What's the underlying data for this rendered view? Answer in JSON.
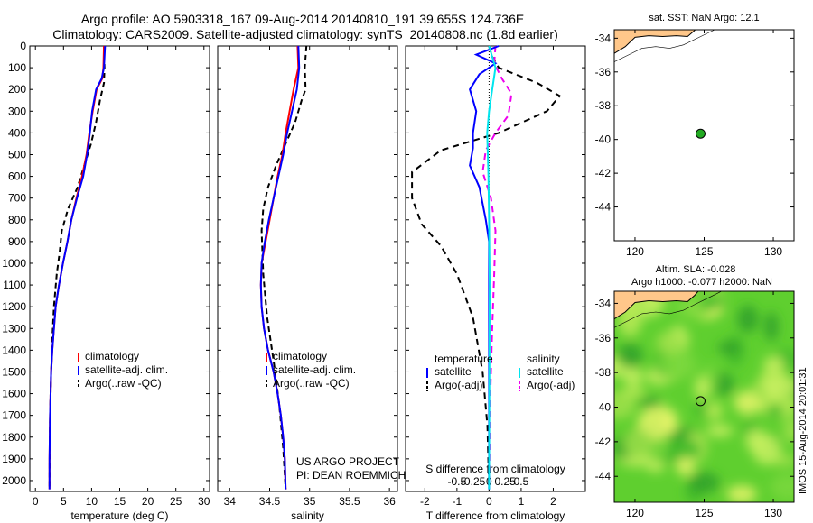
{
  "header": {
    "title_line1": "Argo profile: AO 5903318_167 09-Aug-2014 20140810_191 39.655S 124.736E",
    "title_line2": "Climatology: CARS2009. Satellite-adjusted climatology: synTS_20140808.nc (1.8d earlier)"
  },
  "footer": {
    "project": "US ARGO PROJECT",
    "pi": "PI: DEAN ROEMMICH",
    "vertical_stamp": "IMOS 15-Aug-2014 20:01:31"
  },
  "colors": {
    "climatology": "#ff0000",
    "satellite": "#0000ff",
    "argo": "#000000",
    "s_satellite": "#00e5ee",
    "s_argo": "#ee00ee",
    "land": "#ffc78a",
    "ocean_bg": "#5fcf2f",
    "marker": "#22aa22"
  },
  "chart_data": [
    {
      "type": "line",
      "id": "temperature",
      "xlabel": "temperature (deg C)",
      "ylabel": "",
      "xlim": [
        -1,
        31
      ],
      "ylim": [
        2050,
        0
      ],
      "xticks": [
        0,
        5,
        10,
        15,
        20,
        25,
        30
      ],
      "yticks": [
        0,
        100,
        200,
        300,
        400,
        500,
        600,
        700,
        800,
        900,
        1000,
        1100,
        1200,
        1300,
        1400,
        1500,
        1600,
        1700,
        1800,
        1900,
        2000
      ],
      "legend": [
        "climatology",
        "satellite-adj. clim.",
        "Argo(..raw -QC)"
      ],
      "series": [
        {
          "name": "climatology",
          "x": [
            12.2,
            12.1,
            11.9,
            10.9,
            10.2,
            9.6,
            9.1,
            8.3,
            7.3,
            6.4,
            5.7,
            4.9,
            4.2,
            3.6,
            3.3,
            3.0,
            2.8,
            2.7,
            2.6,
            2.55,
            2.5,
            2.5
          ],
          "y": [
            0,
            100,
            150,
            200,
            300,
            400,
            500,
            600,
            700,
            800,
            900,
            1000,
            1100,
            1200,
            1300,
            1400,
            1500,
            1600,
            1700,
            1800,
            1900,
            2040
          ]
        },
        {
          "name": "satellite-adj. clim.",
          "x": [
            12.4,
            12.2,
            11.8,
            10.8,
            10.1,
            9.7,
            9.2,
            8.5,
            7.4,
            6.4,
            5.7,
            4.9,
            4.2,
            3.6,
            3.3,
            3.0,
            2.8,
            2.7,
            2.6,
            2.55,
            2.5,
            2.5
          ],
          "y": [
            0,
            100,
            150,
            200,
            300,
            400,
            500,
            600,
            700,
            800,
            900,
            1000,
            1100,
            1200,
            1300,
            1400,
            1500,
            1600,
            1700,
            1800,
            1900,
            2040
          ]
        },
        {
          "name": "Argo(..raw -QC)",
          "x": [
            12.2,
            12.3,
            12.2,
            11.5,
            10.8,
            9.9,
            8.7,
            7.5,
            5.8,
            4.7,
            4.3,
            3.8,
            3.3,
            3.0,
            2.8,
            2.65,
            2.55,
            2.5
          ],
          "y": [
            0,
            100,
            170,
            250,
            350,
            450,
            550,
            650,
            750,
            850,
            950,
            1050,
            1200,
            1350,
            1500,
            1650,
            1800,
            2040
          ]
        }
      ]
    },
    {
      "type": "line",
      "id": "salinity",
      "xlabel": "salinity",
      "ylabel": "",
      "xlim": [
        33.85,
        36.1
      ],
      "ylim": [
        2050,
        0
      ],
      "xticks": [
        34,
        34.5,
        35,
        35.5,
        36
      ],
      "xticklabels": [
        "34",
        "34.5",
        "35",
        "35.5",
        "36"
      ],
      "legend": [
        "climatology",
        "satellite-adj. clim.",
        "Argo(..raw -QC)"
      ],
      "series": [
        {
          "name": "climatology",
          "x": [
            34.85,
            34.86,
            34.8,
            34.75,
            34.7,
            34.66,
            34.6,
            34.55,
            34.5,
            34.45,
            34.4,
            34.39,
            34.4,
            34.43,
            34.48,
            34.55,
            34.6,
            34.64,
            34.67,
            34.69,
            34.7
          ],
          "y": [
            0,
            100,
            200,
            300,
            400,
            500,
            600,
            700,
            800,
            900,
            1000,
            1100,
            1200,
            1300,
            1400,
            1500,
            1600,
            1700,
            1800,
            1900,
            2040
          ]
        },
        {
          "name": "satellite-adj. clim.",
          "x": [
            34.86,
            34.87,
            34.84,
            34.78,
            34.72,
            34.67,
            34.61,
            34.55,
            34.49,
            34.44,
            34.4,
            34.39,
            34.4,
            34.43,
            34.48,
            34.55,
            34.6,
            34.64,
            34.67,
            34.69,
            34.7
          ],
          "y": [
            0,
            100,
            200,
            300,
            400,
            500,
            600,
            700,
            800,
            900,
            1000,
            1100,
            1200,
            1300,
            1400,
            1500,
            1600,
            1700,
            1800,
            1900,
            2040
          ]
        },
        {
          "name": "Argo(..raw -QC)",
          "x": [
            34.96,
            34.94,
            34.95,
            34.9,
            34.82,
            34.7,
            34.58,
            34.48,
            34.42,
            34.4,
            34.42,
            34.47,
            34.55,
            34.62,
            34.67,
            34.7
          ],
          "y": [
            0,
            100,
            200,
            250,
            350,
            450,
            550,
            650,
            750,
            850,
            1050,
            1250,
            1450,
            1650,
            1850,
            2040
          ]
        }
      ]
    },
    {
      "type": "line",
      "id": "difference",
      "xlabel": "T difference from climatology",
      "title_bottom": "S difference from climatology",
      "xlim": [
        -2.6,
        3.0
      ],
      "ylim": [
        2050,
        0
      ],
      "xticks": [
        -2,
        -1,
        0,
        1,
        2
      ],
      "s_ticks": [
        -0.5,
        -0.25,
        0,
        0.25,
        0.5
      ],
      "s_ticklabels": [
        "-0.5",
        "-0.25",
        "0",
        "0.25",
        "0.5"
      ],
      "legend_headers": [
        "temperature",
        "salinity"
      ],
      "legend": [
        "satellite",
        "Argo(-adj)",
        "satellite",
        "Argo(-adj)"
      ],
      "series": [
        {
          "name": "satellite",
          "quantity": "temperature",
          "x": [
            0.3,
            -0.4,
            0.2,
            -0.3,
            -0.6,
            -0.4,
            -0.5,
            -0.5,
            -0.6,
            -0.3,
            -0.1,
            0,
            0,
            0,
            0,
            0,
            0,
            0
          ],
          "y": [
            0,
            40,
            80,
            130,
            200,
            300,
            400,
            470,
            550,
            650,
            800,
            900,
            1000,
            1200,
            1400,
            1600,
            1800,
            2040
          ]
        },
        {
          "name": "Argo(-adj)",
          "quantity": "temperature",
          "x": [
            0,
            0.1,
            0.3,
            1.5,
            2.2,
            1.8,
            0.3,
            -1.5,
            -2.4,
            -2.4,
            -2.1,
            -1.5,
            -1.0,
            -0.5,
            -0.2,
            -0.05,
            0
          ],
          "y": [
            0,
            50,
            100,
            170,
            230,
            300,
            400,
            480,
            580,
            700,
            820,
            920,
            1050,
            1250,
            1500,
            1750,
            2040
          ]
        },
        {
          "name": "satellite",
          "quantity": "salinity",
          "x": [
            0,
            0.05,
            0.1,
            0.05,
            0,
            -0.03,
            -0.02,
            -0.01,
            0,
            0.01,
            0
          ],
          "y": [
            0,
            50,
            100,
            200,
            300,
            400,
            500,
            600,
            800,
            1100,
            2040
          ]
        },
        {
          "name": "Argo(-adj)",
          "quantity": "salinity",
          "x": [
            0.1,
            0.08,
            0.2,
            0.35,
            0.3,
            0.1,
            -0.05,
            -0.1,
            0.03,
            0.1,
            0.08,
            0.05,
            0.02,
            0
          ],
          "y": [
            0,
            80,
            150,
            220,
            320,
            400,
            480,
            580,
            700,
            850,
            1050,
            1300,
            1600,
            2040
          ]
        }
      ]
    },
    {
      "type": "map",
      "id": "sst-map",
      "title": "sat. SST: NaN Argo: 12.1",
      "xlim": [
        118.5,
        131.5
      ],
      "ylim": [
        -46,
        -33.5
      ],
      "xticks": [
        120,
        125,
        130
      ],
      "yticks": [
        -34,
        -36,
        -38,
        -40,
        -42,
        -44
      ],
      "marker": {
        "lon": 124.736,
        "lat": -39.655
      }
    },
    {
      "type": "heatmap",
      "id": "sla-map",
      "title_line1": "Altim. SLA: -0.028",
      "title_line2": "Argo h1000: -0.077 h2000: NaN",
      "xlim": [
        118.5,
        131.5
      ],
      "ylim": [
        -45.5,
        -33.3
      ],
      "xticks": [
        120,
        125,
        130
      ],
      "yticks": [
        -34,
        -36,
        -38,
        -40,
        -42,
        -44
      ],
      "marker": {
        "lon": 124.736,
        "lat": -39.655
      }
    }
  ]
}
